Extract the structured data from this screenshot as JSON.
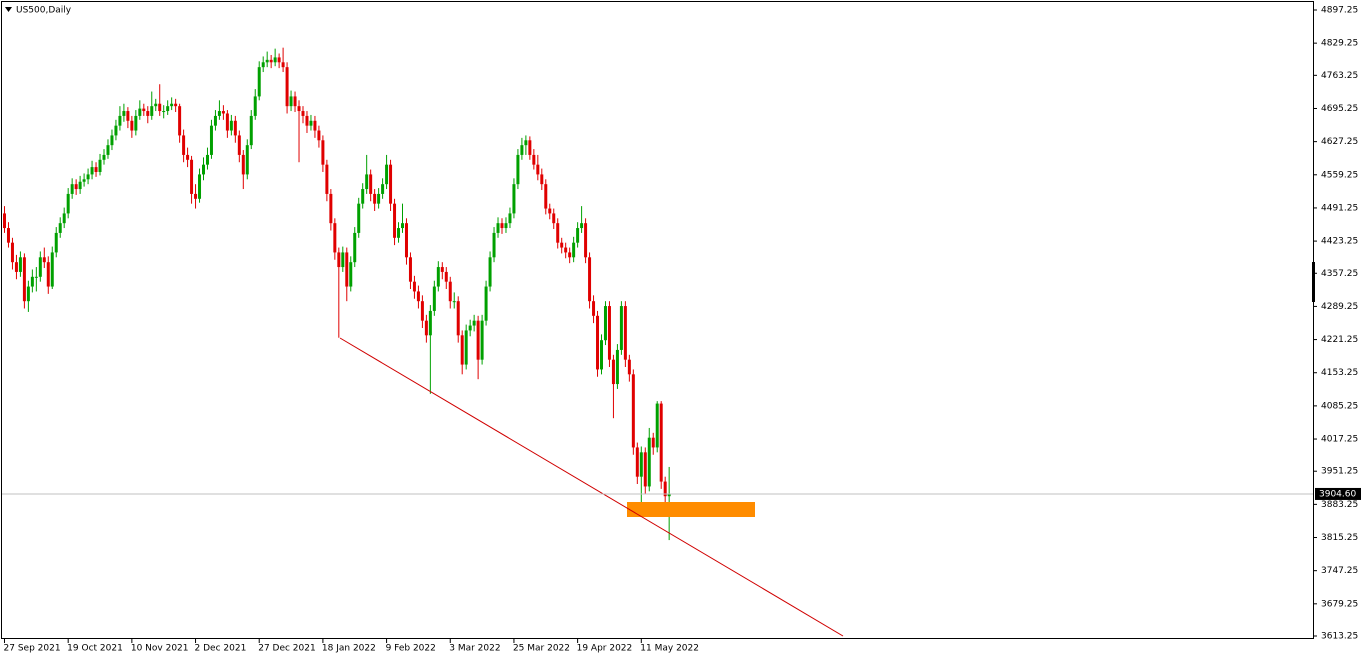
{
  "chart_data": {
    "type": "candlestick",
    "title": "US500,Daily",
    "categories": [
      "27 Sep 2021",
      null,
      null,
      null,
      null,
      null,
      null,
      null,
      null,
      null,
      null,
      null,
      null,
      null,
      null,
      null,
      "19 Oct 2021",
      null,
      null,
      null,
      null,
      null,
      null,
      null,
      null,
      null,
      null,
      null,
      null,
      null,
      null,
      null,
      "10 Nov 2021",
      null,
      null,
      null,
      null,
      null,
      null,
      null,
      null,
      null,
      null,
      null,
      null,
      null,
      null,
      null,
      "2 Dec 2021",
      null,
      null,
      null,
      null,
      null,
      null,
      null,
      null,
      null,
      null,
      null,
      null,
      null,
      null,
      null,
      "27 Dec 2021",
      null,
      null,
      null,
      null,
      null,
      null,
      null,
      null,
      null,
      null,
      null,
      null,
      null,
      null,
      null,
      "18 Jan 2022",
      null,
      null,
      null,
      null,
      null,
      null,
      null,
      null,
      null,
      null,
      null,
      null,
      null,
      null,
      null,
      "9 Feb 2022",
      null,
      null,
      null,
      null,
      null,
      null,
      null,
      null,
      null,
      null,
      null,
      null,
      null,
      null,
      null,
      "3 Mar 2022",
      null,
      null,
      null,
      null,
      null,
      null,
      null,
      null,
      null,
      null,
      null,
      null,
      null,
      null,
      null,
      "25 Mar 2022",
      null,
      null,
      null,
      null,
      null,
      null,
      null,
      null,
      null,
      null,
      null,
      null,
      null,
      null,
      null,
      "19 Apr 2022",
      null,
      null,
      null,
      null,
      null,
      null,
      null,
      null,
      null,
      null,
      null,
      null,
      null,
      null,
      null,
      "11 May 2022",
      null,
      null,
      null,
      null,
      null,
      null,
      null
    ],
    "series": [
      {
        "up_color": "#00a000",
        "down_color": "#e00000",
        "candles": [
          [
            4480,
            4495,
            4440,
            4450
          ],
          [
            4450,
            4462,
            4410,
            4420
          ],
          [
            4420,
            4430,
            4365,
            4380
          ],
          [
            4380,
            4395,
            4345,
            4360
          ],
          [
            4360,
            4402,
            4350,
            4390
          ],
          [
            4390,
            4398,
            4285,
            4300
          ],
          [
            4300,
            4342,
            4278,
            4330
          ],
          [
            4330,
            4365,
            4318,
            4350
          ],
          [
            4350,
            4370,
            4320,
            4350
          ],
          [
            4350,
            4402,
            4340,
            4390
          ],
          [
            4390,
            4410,
            4368,
            4380
          ],
          [
            4380,
            4392,
            4315,
            4330
          ],
          [
            4330,
            4412,
            4325,
            4400
          ],
          [
            4400,
            4452,
            4390,
            4440
          ],
          [
            4440,
            4472,
            4430,
            4460
          ],
          [
            4460,
            4492,
            4450,
            4480
          ],
          [
            4480,
            4532,
            4470,
            4520
          ],
          [
            4520,
            4552,
            4510,
            4540
          ],
          [
            4540,
            4550,
            4518,
            4530
          ],
          [
            4530,
            4557,
            4520,
            4545
          ],
          [
            4545,
            4562,
            4535,
            4550
          ],
          [
            4550,
            4572,
            4540,
            4560
          ],
          [
            4560,
            4588,
            4550,
            4575
          ],
          [
            4575,
            4585,
            4555,
            4565
          ],
          [
            4565,
            4602,
            4558,
            4590
          ],
          [
            4590,
            4612,
            4580,
            4600
          ],
          [
            4600,
            4632,
            4592,
            4620
          ],
          [
            4620,
            4652,
            4610,
            4640
          ],
          [
            4640,
            4672,
            4630,
            4660
          ],
          [
            4660,
            4700,
            4650,
            4680
          ],
          [
            4680,
            4705,
            4668,
            4690
          ],
          [
            4690,
            4698,
            4655,
            4670
          ],
          [
            4670,
            4680,
            4635,
            4650
          ],
          [
            4650,
            4692,
            4640,
            4680
          ],
          [
            4680,
            4712,
            4672,
            4695
          ],
          [
            4695,
            4705,
            4680,
            4690
          ],
          [
            4690,
            4700,
            4665,
            4680
          ],
          [
            4680,
            4730,
            4672,
            4700
          ],
          [
            4700,
            4715,
            4690,
            4705
          ],
          [
            4705,
            4745,
            4680,
            4690
          ],
          [
            4690,
            4702,
            4675,
            4690
          ],
          [
            4690,
            4712,
            4682,
            4700
          ],
          [
            4700,
            4718,
            4692,
            4705
          ],
          [
            4705,
            4715,
            4688,
            4700
          ],
          [
            4700,
            4705,
            4625,
            4640
          ],
          [
            4640,
            4652,
            4585,
            4600
          ],
          [
            4600,
            4615,
            4575,
            4590
          ],
          [
            4590,
            4598,
            4500,
            4520
          ],
          [
            4520,
            4540,
            4490,
            4510
          ],
          [
            4510,
            4572,
            4502,
            4560
          ],
          [
            4560,
            4595,
            4548,
            4580
          ],
          [
            4580,
            4615,
            4570,
            4600
          ],
          [
            4600,
            4672,
            4592,
            4660
          ],
          [
            4660,
            4692,
            4650,
            4680
          ],
          [
            4680,
            4712,
            4672,
            4690
          ],
          [
            4690,
            4702,
            4672,
            4685
          ],
          [
            4685,
            4692,
            4635,
            4650
          ],
          [
            4650,
            4682,
            4640,
            4670
          ],
          [
            4670,
            4680,
            4625,
            4640
          ],
          [
            4640,
            4650,
            4585,
            4600
          ],
          [
            4600,
            4610,
            4530,
            4560
          ],
          [
            4560,
            4632,
            4550,
            4620
          ],
          [
            4620,
            4692,
            4612,
            4680
          ],
          [
            4680,
            4735,
            4672,
            4720
          ],
          [
            4720,
            4792,
            4712,
            4780
          ],
          [
            4780,
            4802,
            4770,
            4790
          ],
          [
            4790,
            4812,
            4780,
            4795
          ],
          [
            4795,
            4805,
            4778,
            4790
          ],
          [
            4790,
            4818,
            4782,
            4800
          ],
          [
            4800,
            4808,
            4778,
            4790
          ],
          [
            4790,
            4820,
            4770,
            4780
          ],
          [
            4780,
            4790,
            4685,
            4700
          ],
          [
            4700,
            4732,
            4690,
            4720
          ],
          [
            4720,
            4730,
            4688,
            4700
          ],
          [
            4700,
            4712,
            4585,
            4690
          ],
          [
            4690,
            4700,
            4665,
            4680
          ],
          [
            4680,
            4690,
            4645,
            4660
          ],
          [
            4660,
            4682,
            4650,
            4670
          ],
          [
            4670,
            4680,
            4635,
            4650
          ],
          [
            4650,
            4660,
            4615,
            4630
          ],
          [
            4630,
            4640,
            4565,
            4580
          ],
          [
            4580,
            4590,
            4505,
            4520
          ],
          [
            4520,
            4530,
            4445,
            4460
          ],
          [
            4460,
            4470,
            4385,
            4400
          ],
          [
            4400,
            4410,
            4225,
            4370
          ],
          [
            4370,
            4412,
            4360,
            4400
          ],
          [
            4400,
            4410,
            4300,
            4330
          ],
          [
            4330,
            4392,
            4320,
            4380
          ],
          [
            4380,
            4452,
            4370,
            4440
          ],
          [
            4440,
            4512,
            4430,
            4500
          ],
          [
            4500,
            4542,
            4490,
            4530
          ],
          [
            4530,
            4600,
            4520,
            4560
          ],
          [
            4560,
            4570,
            4505,
            4520
          ],
          [
            4520,
            4530,
            4485,
            4500
          ],
          [
            4500,
            4532,
            4490,
            4520
          ],
          [
            4520,
            4552,
            4510,
            4540
          ],
          [
            4540,
            4600,
            4530,
            4580
          ],
          [
            4580,
            4590,
            4485,
            4500
          ],
          [
            4500,
            4510,
            4415,
            4430
          ],
          [
            4430,
            4462,
            4420,
            4450
          ],
          [
            4450,
            4500,
            4440,
            4460
          ],
          [
            4460,
            4470,
            4375,
            4390
          ],
          [
            4390,
            4400,
            4325,
            4340
          ],
          [
            4340,
            4352,
            4305,
            4320
          ],
          [
            4320,
            4332,
            4285,
            4300
          ],
          [
            4300,
            4312,
            4245,
            4260
          ],
          [
            4260,
            4272,
            4215,
            4230
          ],
          [
            4230,
            4292,
            4110,
            4280
          ],
          [
            4280,
            4342,
            4270,
            4330
          ],
          [
            4330,
            4382,
            4320,
            4370
          ],
          [
            4370,
            4380,
            4345,
            4360
          ],
          [
            4360,
            4370,
            4325,
            4340
          ],
          [
            4340,
            4350,
            4285,
            4300
          ],
          [
            4300,
            4318,
            4285,
            4300
          ],
          [
            4300,
            4310,
            4215,
            4230
          ],
          [
            4230,
            4240,
            4150,
            4170
          ],
          [
            4170,
            4252,
            4160,
            4240
          ],
          [
            4240,
            4262,
            4228,
            4250
          ],
          [
            4250,
            4272,
            4238,
            4260
          ],
          [
            4260,
            4270,
            4140,
            4180
          ],
          [
            4180,
            4272,
            4170,
            4260
          ],
          [
            4260,
            4342,
            4250,
            4330
          ],
          [
            4330,
            4402,
            4320,
            4390
          ],
          [
            4390,
            4452,
            4380,
            4440
          ],
          [
            4440,
            4472,
            4430,
            4460
          ],
          [
            4460,
            4470,
            4438,
            4450
          ],
          [
            4450,
            4472,
            4440,
            4460
          ],
          [
            4460,
            4492,
            4450,
            4480
          ],
          [
            4480,
            4552,
            4470,
            4540
          ],
          [
            4540,
            4612,
            4530,
            4600
          ],
          [
            4600,
            4635,
            4590,
            4620
          ],
          [
            4620,
            4640,
            4600,
            4630
          ],
          [
            4630,
            4638,
            4590,
            4600
          ],
          [
            4600,
            4612,
            4570,
            4580
          ],
          [
            4580,
            4600,
            4548,
            4560
          ],
          [
            4560,
            4572,
            4528,
            4540
          ],
          [
            4540,
            4550,
            4478,
            4490
          ],
          [
            4490,
            4500,
            4468,
            4480
          ],
          [
            4480,
            4490,
            4448,
            4460
          ],
          [
            4460,
            4470,
            4408,
            4420
          ],
          [
            4420,
            4430,
            4398,
            4410
          ],
          [
            4410,
            4420,
            4388,
            4400
          ],
          [
            4400,
            4410,
            4378,
            4390
          ],
          [
            4390,
            4432,
            4380,
            4420
          ],
          [
            4420,
            4462,
            4410,
            4450
          ],
          [
            4450,
            4495,
            4440,
            4460
          ],
          [
            4460,
            4470,
            4378,
            4390
          ],
          [
            4390,
            4400,
            4285,
            4300
          ],
          [
            4300,
            4312,
            4255,
            4270
          ],
          [
            4270,
            4280,
            4145,
            4160
          ],
          [
            4160,
            4232,
            4150,
            4220
          ],
          [
            4220,
            4300,
            4210,
            4290
          ],
          [
            4290,
            4300,
            4165,
            4180
          ],
          [
            4180,
            4190,
            4060,
            4130
          ],
          [
            4130,
            4212,
            4120,
            4200
          ],
          [
            4200,
            4300,
            4190,
            4290
          ],
          [
            4290,
            4300,
            4165,
            4180
          ],
          [
            4180,
            4190,
            4135,
            4150
          ],
          [
            4150,
            4160,
            3985,
            4000
          ],
          [
            4000,
            4010,
            3925,
            3940
          ],
          [
            3940,
            4002,
            3860,
            3990
          ],
          [
            3990,
            4000,
            3905,
            3920
          ],
          [
            3920,
            4040,
            3910,
            4020
          ],
          [
            4020,
            4030,
            3985,
            4000
          ],
          [
            4000,
            4095,
            3990,
            4090
          ],
          [
            4090,
            4095,
            3915,
            3930
          ],
          [
            3930,
            3940,
            3880,
            3900
          ],
          [
            3900,
            3960,
            3810,
            3904.6
          ]
        ]
      }
    ],
    "ylim": [
      3613.25,
      4897.25
    ],
    "yticks": [
      4897.25,
      4829.25,
      4763.25,
      4695.25,
      4627.25,
      4559.25,
      4491.25,
      4423.25,
      4357.25,
      4289.25,
      4221.25,
      4153.25,
      4085.25,
      4017.25,
      3951.25,
      3883.25,
      3815.25,
      3747.25,
      3679.25,
      3613.25
    ],
    "last_price": {
      "value": 3904.6,
      "label": "3904.60"
    }
  }
}
